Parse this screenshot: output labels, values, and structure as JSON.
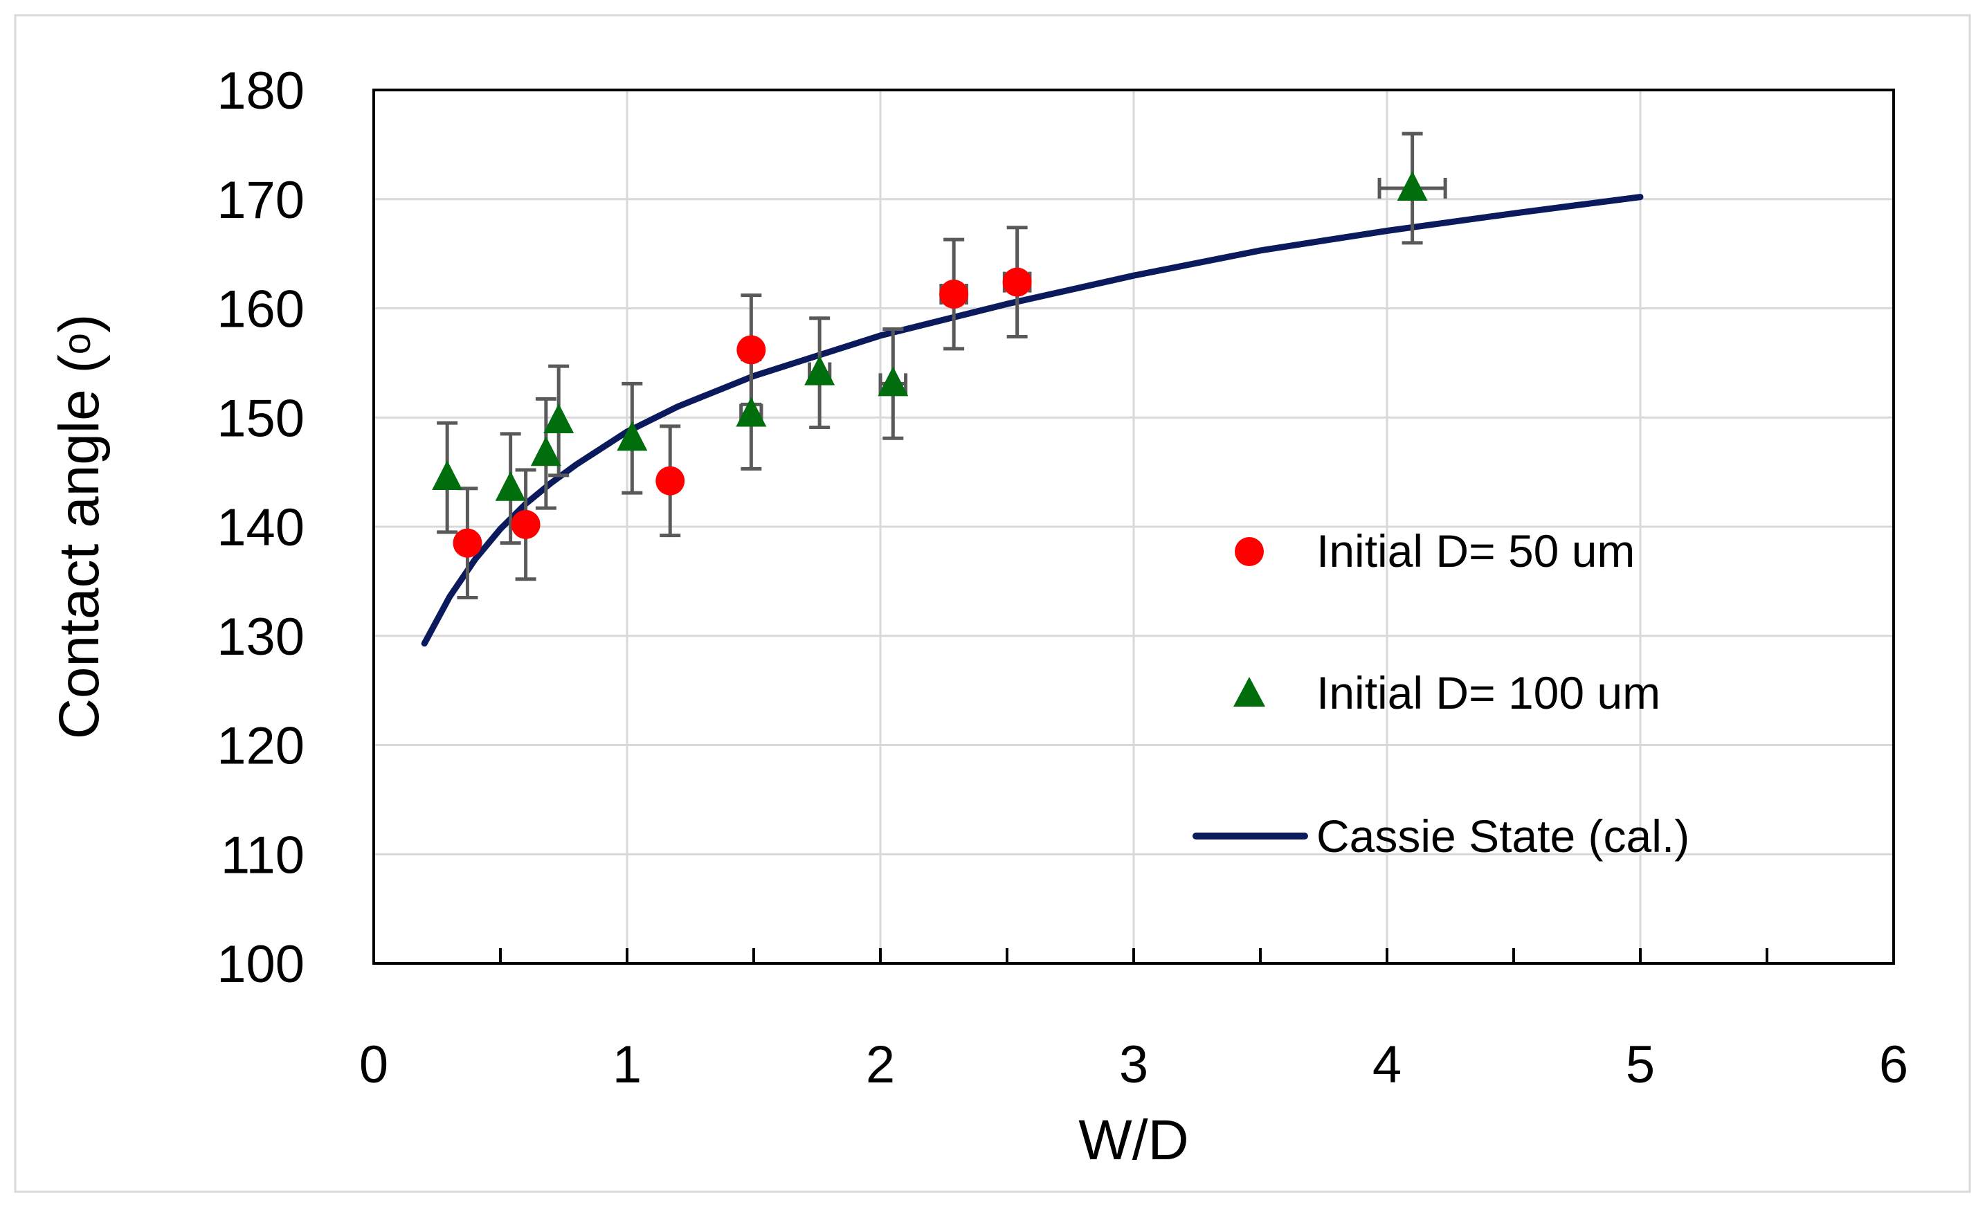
{
  "chart_data": {
    "type": "scatter",
    "title": "",
    "xlabel": "W/D",
    "ylabel": "Contact angle (o)",
    "xlim": [
      0,
      6
    ],
    "ylim": [
      100,
      180
    ],
    "xticks": [
      "0",
      "1",
      "2",
      "3",
      "4",
      "5",
      "6"
    ],
    "yticks": [
      "100",
      "110",
      "120",
      "130",
      "140",
      "150",
      "160",
      "170",
      "180"
    ],
    "grid": true,
    "legend_position": "right",
    "series": [
      {
        "name": "Initial D= 50 um",
        "marker": "circle",
        "color": "#ff0000",
        "points": [
          {
            "x": 0.37,
            "y": 138.5,
            "yerr": 5
          },
          {
            "x": 0.6,
            "y": 140.2,
            "yerr": 5
          },
          {
            "x": 1.17,
            "y": 144.2,
            "yerr": 5
          },
          {
            "x": 1.49,
            "y": 156.2,
            "yerr": 5
          },
          {
            "x": 2.29,
            "y": 161.3,
            "yerr": 5,
            "xerr": 0.05
          },
          {
            "x": 2.54,
            "y": 162.4,
            "yerr": 5,
            "xerr": 0.05
          }
        ]
      },
      {
        "name": "Initial D= 100 um",
        "marker": "triangle",
        "color": "#006e0c",
        "points": [
          {
            "x": 0.29,
            "y": 144.5,
            "yerr": 5
          },
          {
            "x": 0.54,
            "y": 143.5,
            "yerr": 5
          },
          {
            "x": 0.68,
            "y": 146.7,
            "yerr": 5
          },
          {
            "x": 0.73,
            "y": 149.7,
            "yerr": 5
          },
          {
            "x": 1.02,
            "y": 148.1,
            "yerr": 5
          },
          {
            "x": 1.49,
            "y": 150.3,
            "yerr": 5,
            "xerr": 0.04
          },
          {
            "x": 1.76,
            "y": 154.1,
            "yerr": 5,
            "xerr": 0.04
          },
          {
            "x": 2.05,
            "y": 153.1,
            "yerr": 5,
            "xerr": 0.05
          },
          {
            "x": 4.1,
            "y": 171.0,
            "yerr": 5,
            "xerr": 0.13
          }
        ]
      },
      {
        "name": "Cassie State (cal.)",
        "marker": "line",
        "color": "#0a1a5c",
        "x": [
          0.2,
          0.3,
          0.4,
          0.5,
          0.6,
          0.7,
          0.8,
          1.0,
          1.2,
          1.5,
          2.0,
          2.5,
          3.0,
          3.5,
          4.0,
          4.5,
          5.0
        ],
        "values": [
          129.3,
          133.6,
          137.0,
          139.8,
          142.1,
          144.0,
          145.7,
          148.7,
          151.0,
          153.8,
          157.5,
          160.4,
          163.0,
          165.3,
          167.1,
          168.7,
          170.2
        ]
      }
    ],
    "error_bar_color": "#595959"
  }
}
